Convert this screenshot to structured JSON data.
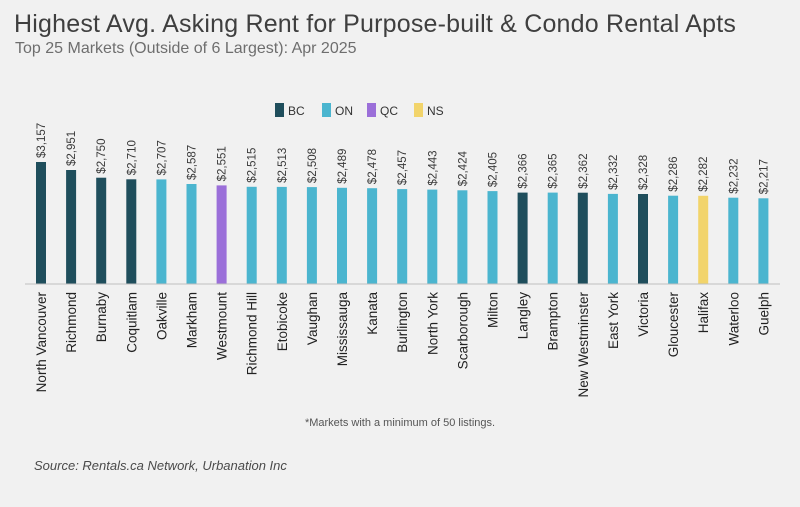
{
  "chart_data": {
    "type": "bar",
    "title": "Highest Avg. Asking Rent for Purpose-built & Condo Rental Apts",
    "subtitle": "Top 25 Markets (Outside of 6 Largest): Apr 2025",
    "xlabel": "",
    "ylabel": "",
    "ylim": [
      0,
      3400
    ],
    "grid": false,
    "legend_position": "top",
    "legend": [
      {
        "key": "BC",
        "label": "BC",
        "color": "#1f4e5c"
      },
      {
        "key": "ON",
        "label": "ON",
        "color": "#4bb5cf"
      },
      {
        "key": "QC",
        "label": "QC",
        "color": "#9b6fd9"
      },
      {
        "key": "NS",
        "label": "NS",
        "color": "#f2d46b"
      }
    ],
    "categories": [
      "North Vancouver",
      "Richmond",
      "Burnaby",
      "Coquitlam",
      "Oakville",
      "Markham",
      "Westmount",
      "Richmond Hill",
      "Etobicoke",
      "Vaughan",
      "Mississauga",
      "Kanata",
      "Burlington",
      "North York",
      "Scarborough",
      "Milton",
      "Langley",
      "Brampton",
      "New Westminster",
      "East York",
      "Victoria",
      "Gloucester",
      "Halifax",
      "Waterloo",
      "Guelph"
    ],
    "values": [
      3157,
      2951,
      2750,
      2710,
      2707,
      2587,
      2551,
      2515,
      2513,
      2508,
      2489,
      2478,
      2457,
      2443,
      2424,
      2405,
      2366,
      2365,
      2362,
      2332,
      2328,
      2286,
      2282,
      2232,
      2217
    ],
    "value_labels": [
      "$3,157",
      "$2,951",
      "$2,750",
      "$2,710",
      "$2,707",
      "$2,587",
      "$2,551",
      "$2,515",
      "$2,513",
      "$2,508",
      "$2,489",
      "$2,478",
      "$2,457",
      "$2,443",
      "$2,424",
      "$2,405",
      "$2,366",
      "$2,365",
      "$2,362",
      "$2,332",
      "$2,328",
      "$2,286",
      "$2,282",
      "$2,232",
      "$2,217"
    ],
    "provinces": [
      "BC",
      "BC",
      "BC",
      "BC",
      "ON",
      "ON",
      "QC",
      "ON",
      "ON",
      "ON",
      "ON",
      "ON",
      "ON",
      "ON",
      "ON",
      "ON",
      "BC",
      "ON",
      "BC",
      "ON",
      "BC",
      "ON",
      "NS",
      "ON",
      "ON"
    ]
  },
  "footnote": "*Markets with a minimum of 50 listings.",
  "source": "Source: Rentals.ca Network, Urbanation Inc"
}
